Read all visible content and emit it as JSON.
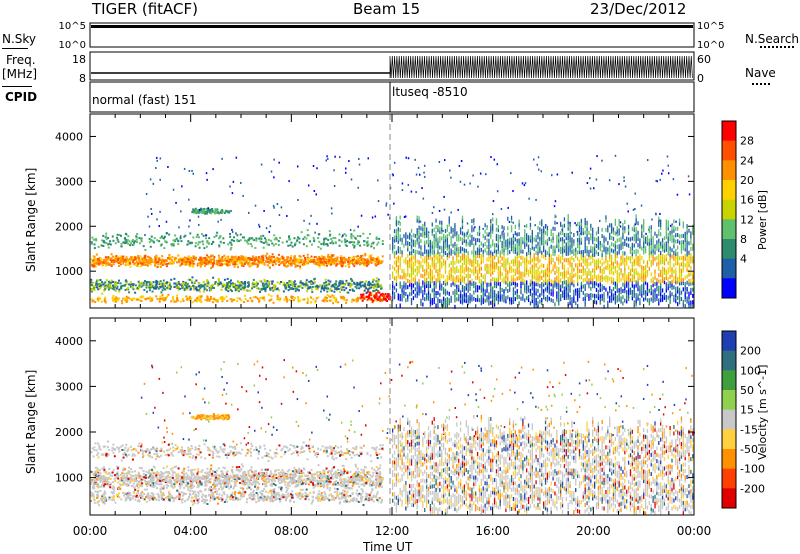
{
  "header": {
    "title": "TIGER (fitACF)",
    "beam": "Beam 15",
    "date": "23/Dec/2012"
  },
  "top_panels": {
    "nsky_label": "N.Sky",
    "nsky_ticks": [
      "10^5",
      "10^0"
    ],
    "nsearch_label": "N.Search",
    "nsearch_ticks": [
      "10^5",
      "10^0"
    ],
    "freq_label": "Freq.",
    "freq_unit": "[MHz]",
    "freq_ticks": [
      "18",
      "8"
    ],
    "nave_label": "Nave",
    "nave_ticks": [
      "60",
      "0"
    ],
    "cpid_label": "CPID",
    "cpid_modes": [
      "normal (fast) 151",
      "ltuseq -8510"
    ]
  },
  "power_panel": {
    "ylabel": "Slant Range [km]",
    "yticks": [
      "4000",
      "3000",
      "2000",
      "1000"
    ],
    "cbar_label": "Power [dB]",
    "cbar_ticks": [
      "28",
      "24",
      "20",
      "16",
      "12",
      "8",
      "4"
    ],
    "cbar_colors": [
      "#ff0000",
      "#ff5000",
      "#ff9000",
      "#ffd000",
      "#c8d400",
      "#5fc06e",
      "#2e8c6e",
      "#1f5fa8",
      "#0000ff"
    ]
  },
  "velocity_panel": {
    "ylabel": "Slant Range [km]",
    "yticks": [
      "4000",
      "3000",
      "2000",
      "1000"
    ],
    "cbar_label": "Velocity [m s^-1]",
    "cbar_ticks": [
      "200",
      "100",
      "50",
      "15",
      "-15",
      "-50",
      "-100",
      "-200"
    ],
    "cbar_colors": [
      "#1f3fb0",
      "#2f6f7f",
      "#3f9f3f",
      "#8fd04f",
      "#c8c8c8",
      "#ffd040",
      "#ff9000",
      "#ff4000",
      "#e00000"
    ]
  },
  "xaxis": {
    "label": "Time UT",
    "ticks": [
      "00:00",
      "04:00",
      "08:00",
      "12:00",
      "16:00",
      "20:00",
      "00:00"
    ]
  },
  "chart_data": [
    {
      "type": "heatmap",
      "title": "Power",
      "xlabel": "Time UT",
      "ylabel": "Slant Range [km]",
      "xlim": [
        "00:00",
        "24:00"
      ],
      "ylim": [
        180,
        4500
      ],
      "colorbar": {
        "label": "Power [dB]",
        "range": [
          0,
          30
        ]
      },
      "features": [
        {
          "time_start_h": 0,
          "time_end_h": 11.5,
          "range_km": 1250,
          "power_db": 20
        },
        {
          "time_start_h": 0,
          "time_end_h": 11.5,
          "range_km": 700,
          "power_db": 14
        },
        {
          "time_start_h": 12,
          "time_end_h": 24,
          "range_km_span": [
            400,
            2200
          ],
          "power_db": 10
        }
      ]
    },
    {
      "type": "heatmap",
      "title": "Velocity",
      "xlabel": "Time UT",
      "ylabel": "Slant Range [km]",
      "xlim": [
        "00:00",
        "24:00"
      ],
      "ylim": [
        180,
        4500
      ],
      "colorbar": {
        "label": "Velocity [m s^-1]",
        "range": [
          -200,
          200
        ]
      },
      "features": [
        {
          "time_start_h": 0,
          "time_end_h": 11.5,
          "range_km_span": [
            600,
            1400
          ],
          "velocity": 0
        },
        {
          "time_start_h": 12,
          "time_end_h": 24,
          "range_km_span": [
            400,
            2300
          ],
          "velocity": -20
        }
      ]
    }
  ]
}
